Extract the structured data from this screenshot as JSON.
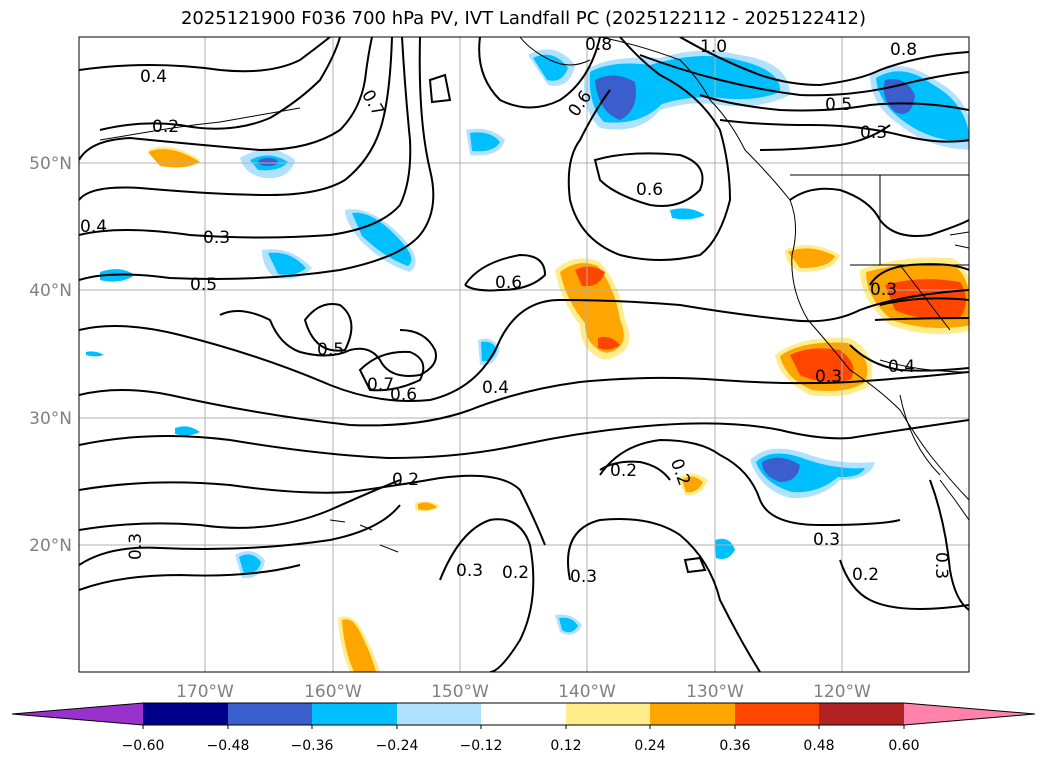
{
  "title": "2025121900 F036 700 hPa PV, IVT Landfall PC (2025122112 - 2025122412)",
  "map": {
    "lat_labels": [
      "50°N",
      "40°N",
      "30°N",
      "20°N"
    ],
    "lon_labels": [
      "170°W",
      "160°W",
      "150°W",
      "140°W",
      "130°W",
      "120°W"
    ],
    "contour_labels": [
      "0.4",
      "0.2",
      "0.7",
      "0.8",
      "1.0",
      "0.8",
      "0.5",
      "0.3",
      "0.6",
      "0.6",
      "0.4",
      "0.3",
      "0.5",
      "0.6",
      "0.5",
      "0.7",
      "0.6",
      "0.4",
      "0.3",
      "0.4",
      "0.2",
      "0.2",
      "0.2",
      "0.3",
      "0.3",
      "0.2",
      "0.3",
      "0.3",
      "0.2",
      "0.3",
      "0.3"
    ]
  },
  "colorbar": {
    "tick_labels": [
      "−0.60",
      "−0.48",
      "−0.36",
      "−0.24",
      "−0.12",
      "0.12",
      "0.24",
      "0.36",
      "0.48",
      "0.60"
    ],
    "colors": [
      "#9932cc",
      "#00008b",
      "#3a5fcd",
      "#00bfff",
      "#b0e2ff",
      "#ffffff",
      "#ffec8b",
      "#ffa500",
      "#ff4500",
      "#b22222",
      "#ff82ab"
    ]
  }
}
